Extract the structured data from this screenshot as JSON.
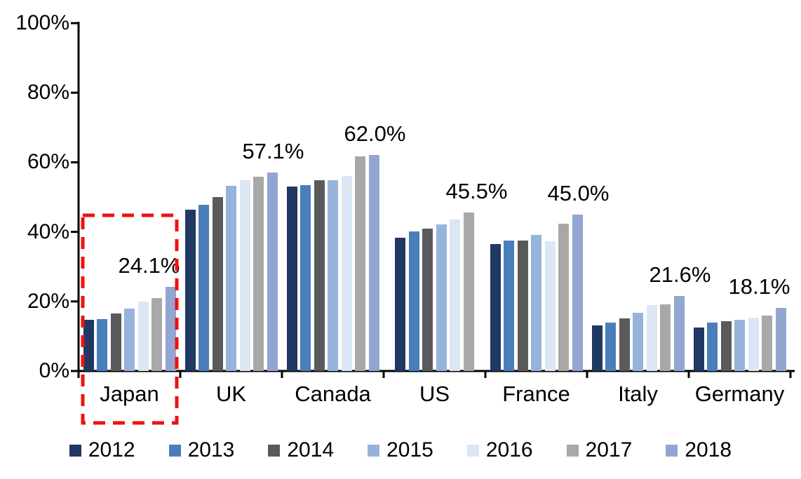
{
  "chart_data": {
    "type": "bar",
    "title": "",
    "xlabel": "",
    "ylabel": "",
    "categories": [
      "Japan",
      "UK",
      "Canada",
      "US",
      "France",
      "Italy",
      "Germany"
    ],
    "series": [
      {
        "name": "2012",
        "color": "#1F3864",
        "values": [
          14.8,
          46.3,
          53.0,
          38.3,
          36.5,
          13.2,
          12.5
        ]
      },
      {
        "name": "2013",
        "color": "#4A7EBB",
        "values": [
          14.9,
          47.8,
          53.4,
          40.2,
          37.6,
          14.0,
          13.9
        ]
      },
      {
        "name": "2014",
        "color": "#5A5A5A",
        "values": [
          16.5,
          50.0,
          54.9,
          41.0,
          37.5,
          15.2,
          14.3
        ]
      },
      {
        "name": "2015",
        "color": "#95B3DB",
        "values": [
          17.9,
          53.3,
          54.8,
          42.2,
          39.2,
          16.8,
          14.8
        ]
      },
      {
        "name": "2016",
        "color": "#DCE6F4",
        "values": [
          19.9,
          54.9,
          56.1,
          43.5,
          37.2,
          18.9,
          15.3
        ]
      },
      {
        "name": "2017",
        "color": "#A8A8A8",
        "values": [
          20.9,
          55.8,
          61.6,
          45.5,
          42.3,
          19.1,
          15.9
        ]
      },
      {
        "name": "2018",
        "color": "#92A6D1",
        "values": [
          24.1,
          57.1,
          62.0,
          null,
          45.0,
          21.6,
          18.1
        ]
      }
    ],
    "data_labels": [
      "24.1%",
      "57.1%",
      "62.0%",
      "45.5%",
      "45.0%",
      "21.6%",
      "18.1%"
    ],
    "ylim": [
      0,
      100
    ],
    "yticks": [
      "0%",
      "20%",
      "40%",
      "60%",
      "80%",
      "100%"
    ],
    "grid": false,
    "legend_position": "bottom",
    "annotation": {
      "shape": "dashed-rectangle",
      "color": "#F01010",
      "around": "Japan"
    }
  }
}
